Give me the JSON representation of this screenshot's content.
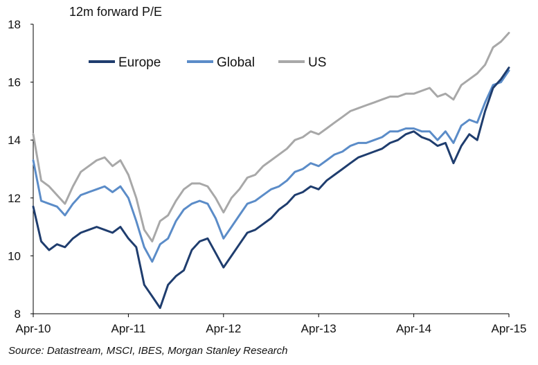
{
  "chart_data": {
    "type": "line",
    "ylabel": "12m forward P/E",
    "ylim": [
      8,
      18
    ],
    "yticks": [
      8,
      10,
      12,
      14,
      16,
      18
    ],
    "x_ticks": [
      "Apr-10",
      "Apr-11",
      "Apr-12",
      "Apr-13",
      "Apr-14",
      "Apr-15"
    ],
    "x_index": [
      0,
      1,
      2,
      3,
      4,
      5,
      6,
      7,
      8,
      9,
      10,
      11,
      12,
      13,
      14,
      15,
      16,
      17,
      18,
      19,
      20,
      21,
      22,
      23,
      24,
      25,
      26,
      27,
      28,
      29,
      30,
      31,
      32,
      33,
      34,
      35,
      36,
      37,
      38,
      39,
      40,
      41,
      42,
      43,
      44,
      45,
      46,
      47,
      48,
      49,
      50,
      51,
      52,
      53,
      54,
      55,
      56,
      57,
      58,
      59,
      60
    ],
    "legend_position": "top-left",
    "grid": false,
    "source": "Source: Datastream, MSCI, IBES, Morgan Stanley Research",
    "series": [
      {
        "name": "Europe",
        "color": "#1f3d6e",
        "values": [
          11.7,
          10.5,
          10.2,
          10.4,
          10.3,
          10.6,
          10.8,
          10.9,
          11.0,
          10.9,
          10.8,
          11.0,
          10.6,
          10.3,
          9.0,
          8.6,
          8.2,
          9.0,
          9.3,
          9.5,
          10.2,
          10.5,
          10.6,
          10.1,
          9.6,
          10.0,
          10.4,
          10.8,
          10.9,
          11.1,
          11.3,
          11.6,
          11.8,
          12.1,
          12.2,
          12.4,
          12.3,
          12.6,
          12.8,
          13.0,
          13.2,
          13.4,
          13.5,
          13.6,
          13.7,
          13.9,
          14.0,
          14.2,
          14.3,
          14.1,
          14.0,
          13.8,
          13.9,
          13.2,
          13.8,
          14.2,
          14.0,
          15.0,
          15.8,
          16.1,
          16.5
        ]
      },
      {
        "name": "Global",
        "color": "#5b8cc8",
        "values": [
          13.3,
          11.9,
          11.8,
          11.7,
          11.4,
          11.8,
          12.1,
          12.2,
          12.3,
          12.4,
          12.2,
          12.4,
          12.0,
          11.2,
          10.3,
          9.8,
          10.4,
          10.6,
          11.2,
          11.6,
          11.8,
          11.9,
          11.8,
          11.3,
          10.6,
          11.0,
          11.4,
          11.8,
          11.9,
          12.1,
          12.3,
          12.4,
          12.6,
          12.9,
          13.0,
          13.2,
          13.1,
          13.3,
          13.5,
          13.6,
          13.8,
          13.9,
          13.9,
          14.0,
          14.1,
          14.3,
          14.3,
          14.4,
          14.4,
          14.3,
          14.3,
          14.0,
          14.3,
          13.9,
          14.5,
          14.7,
          14.6,
          15.3,
          15.9,
          16.0,
          16.4
        ]
      },
      {
        "name": "US",
        "color": "#a8a8a8",
        "values": [
          14.2,
          12.6,
          12.4,
          12.1,
          11.8,
          12.4,
          12.9,
          13.1,
          13.3,
          13.4,
          13.1,
          13.3,
          12.8,
          12.0,
          10.9,
          10.5,
          11.2,
          11.4,
          11.9,
          12.3,
          12.5,
          12.5,
          12.4,
          12.0,
          11.5,
          12.0,
          12.3,
          12.7,
          12.8,
          13.1,
          13.3,
          13.5,
          13.7,
          14.0,
          14.1,
          14.3,
          14.2,
          14.4,
          14.6,
          14.8,
          15.0,
          15.1,
          15.2,
          15.3,
          15.4,
          15.5,
          15.5,
          15.6,
          15.6,
          15.7,
          15.8,
          15.5,
          15.6,
          15.4,
          15.9,
          16.1,
          16.3,
          16.6,
          17.2,
          17.4,
          17.7
        ]
      }
    ]
  }
}
